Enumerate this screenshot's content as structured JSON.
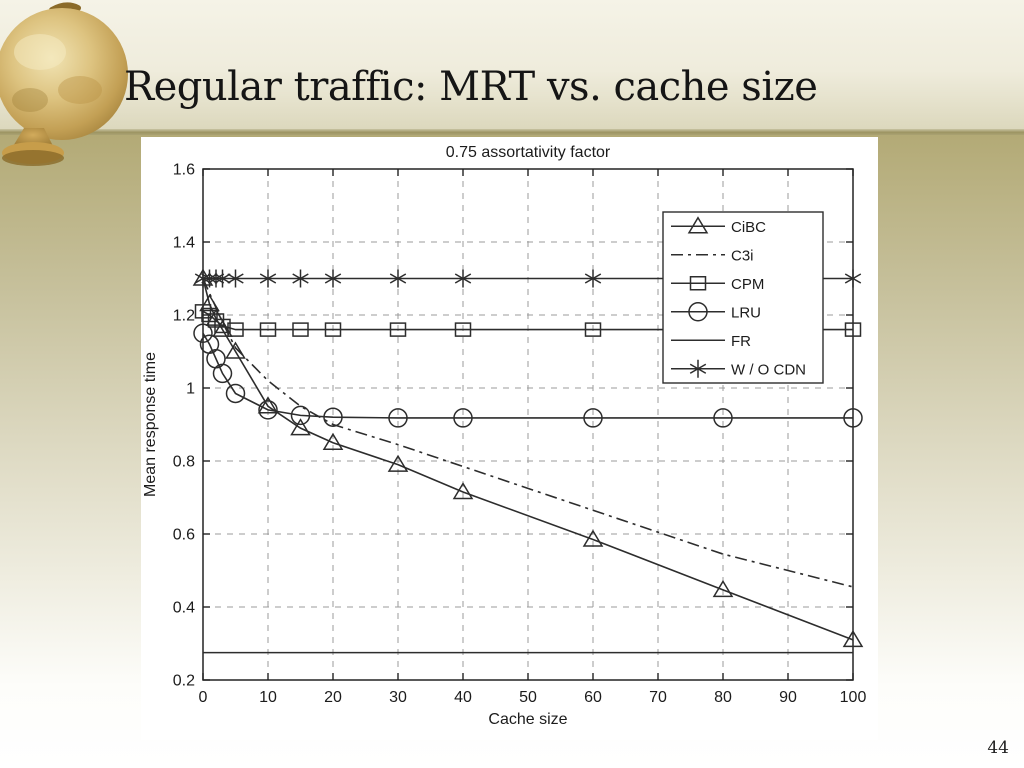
{
  "slide": {
    "title": "Regular traffic: MRT vs. cache size",
    "page_number": "44"
  },
  "chart_data": {
    "type": "line",
    "title": "0.75 assortativity factor",
    "xlabel": "Cache size",
    "ylabel": "Mean response time",
    "xlim": [
      0,
      100
    ],
    "ylim": [
      0.2,
      1.6
    ],
    "xticks": [
      0,
      10,
      20,
      30,
      40,
      50,
      60,
      70,
      80,
      90,
      100
    ],
    "ytick_labels": [
      "0.2",
      "0.4",
      "0.6",
      "0.8",
      "1",
      "1.2",
      "1.4",
      "1.6"
    ],
    "grid": true,
    "legend_position": "upper-right",
    "line_color": "#2d2d2d",
    "grid_color": "#9b9b9b",
    "x": [
      0,
      1,
      2,
      3,
      5,
      10,
      15,
      20,
      30,
      40,
      60,
      80,
      100
    ],
    "series": [
      {
        "name": "CiBC",
        "marker": "triangle",
        "line": "solid",
        "values": [
          1.3,
          1.23,
          1.19,
          1.16,
          1.1,
          0.95,
          0.89,
          0.85,
          0.79,
          0.715,
          0.585,
          0.447,
          0.31
        ]
      },
      {
        "name": "C3i",
        "marker": "none",
        "line": "dashdot",
        "values": [
          1.3,
          1.26,
          1.22,
          1.18,
          1.11,
          1.02,
          0.95,
          0.9,
          0.845,
          0.785,
          0.665,
          0.545,
          0.455
        ]
      },
      {
        "name": "CPM",
        "marker": "square",
        "line": "solid",
        "values": [
          1.21,
          1.2,
          1.185,
          1.17,
          1.16,
          1.16,
          1.16,
          1.16,
          1.16,
          1.16,
          1.16,
          1.16,
          1.16
        ]
      },
      {
        "name": "LRU",
        "marker": "circle",
        "line": "solid",
        "values": [
          1.15,
          1.12,
          1.08,
          1.04,
          0.985,
          0.94,
          0.925,
          0.92,
          0.918,
          0.918,
          0.918,
          0.918,
          0.918
        ]
      },
      {
        "name": "FR",
        "marker": "none",
        "line": "solid",
        "values": [
          0.275,
          0.275,
          0.275,
          0.275,
          0.275,
          0.275,
          0.275,
          0.275,
          0.275,
          0.275,
          0.275,
          0.275,
          0.275
        ]
      },
      {
        "name": "W / O CDN",
        "marker": "asterisk",
        "line": "solid",
        "values": [
          1.3,
          1.3,
          1.3,
          1.3,
          1.3,
          1.3,
          1.3,
          1.3,
          1.3,
          1.3,
          1.3,
          1.3,
          1.3
        ]
      }
    ]
  }
}
